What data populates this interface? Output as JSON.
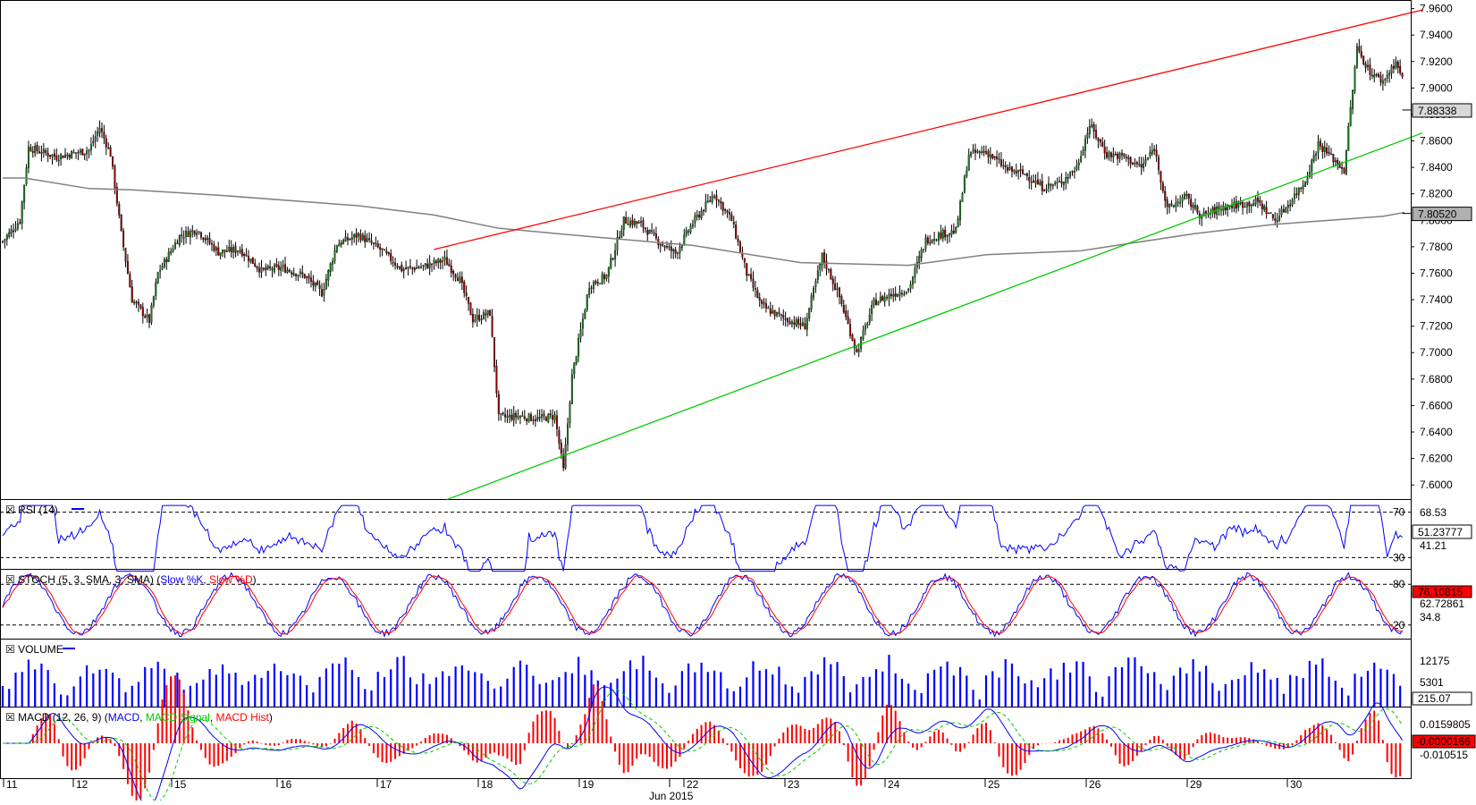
{
  "chart_data": {
    "type": "candlestick",
    "instrument_axis": {
      "price_ticks": [
        "7.9600",
        "7.9400",
        "7.9200",
        "7.9000",
        "7.8800",
        "7.8600",
        "7.8400",
        "7.8200",
        "7.8000",
        "7.7800",
        "7.7600",
        "7.7400",
        "7.7200",
        "7.7000",
        "7.6800",
        "7.6600",
        "7.6400",
        "7.6200",
        "7.6000"
      ],
      "price_range": [
        7.5893,
        7.9665
      ],
      "current_price_label": "7.88338",
      "ma_price_label": "7.80520"
    },
    "x_axis": {
      "day_labels": [
        "11",
        "12",
        "15",
        "16",
        "17",
        "18",
        "19",
        "",
        "22",
        "23",
        "24",
        "25",
        "26",
        "29",
        "30"
      ],
      "month_label": "Jun 2015"
    },
    "candles": [],
    "moving_average_200": [
      {
        "x": 0,
        "y": 7.832
      },
      {
        "x": 10,
        "y": 7.832
      },
      {
        "x": 40,
        "y": 7.824
      },
      {
        "x": 60,
        "y": 7.823
      },
      {
        "x": 100,
        "y": 7.819
      },
      {
        "x": 165,
        "y": 7.811
      },
      {
        "x": 200,
        "y": 7.804
      },
      {
        "x": 230,
        "y": 7.794
      },
      {
        "x": 270,
        "y": 7.788
      },
      {
        "x": 320,
        "y": 7.781
      },
      {
        "x": 370,
        "y": 7.768
      },
      {
        "x": 420,
        "y": 7.766
      },
      {
        "x": 456,
        "y": 7.774
      },
      {
        "x": 500,
        "y": 7.777
      },
      {
        "x": 553,
        "y": 7.79
      },
      {
        "x": 590,
        "y": 7.797
      },
      {
        "x": 640,
        "y": 7.803
      },
      {
        "x": 650,
        "y": 7.806
      }
    ],
    "trendlines": {
      "upper": {
        "color": "#ff0000",
        "from": {
          "x": 200,
          "y": 7.778
        },
        "to": {
          "x": 650,
          "y": 7.959
        }
      },
      "lower": {
        "color": "#00cc00",
        "from": {
          "x": 206,
          "y": 7.589
        },
        "to": {
          "x": 650,
          "y": 7.866
        }
      }
    },
    "rsi": {
      "label": "RSI (14)",
      "levels": [
        "70",
        "30"
      ],
      "value_labels": [
        "68.53",
        "51.23777",
        "41.21"
      ],
      "range": [
        20,
        80
      ],
      "points": []
    },
    "stoch": {
      "label": "STOCH (5, 3, SMA, 3, SMA)",
      "k_label": "Slow %K",
      "d_label": "Slow %D",
      "levels": [
        "80",
        "20"
      ],
      "value_labels": [
        "76.10815",
        "62.72861",
        "34.8"
      ],
      "range": [
        0,
        100
      ],
      "k": [],
      "d": []
    },
    "volume": {
      "label": "VOLUME",
      "value_labels": [
        "12175",
        "5301",
        "215.07"
      ],
      "range": [
        0,
        16000
      ],
      "bars": []
    },
    "macd": {
      "label": "MACD (12, 26, 9)",
      "macd_label": "MACD",
      "signal_label": "MACD Signal",
      "hist_label": "MACD Hist",
      "value_labels": [
        "0.0159805",
        "-0.0000166",
        "-0.010515"
      ],
      "range": [
        -0.026,
        0.026
      ],
      "macd": [],
      "signal": [],
      "hist": []
    },
    "colors": {
      "bull": "#1a7a1a",
      "bear": "#8b0000",
      "ma": "#808080",
      "rsi": "#0000ff",
      "stoch_k": "#0000ff",
      "stoch_d": "#ff0000",
      "volume": "#0000ff",
      "macd": "#0000ff",
      "signal": "#00cc00",
      "hist": "#ff0000",
      "current_label_bg": "#d8d8d8",
      "ma_label_bg": "#b0b0b0",
      "neg_label_bg": "#ff0000"
    }
  }
}
